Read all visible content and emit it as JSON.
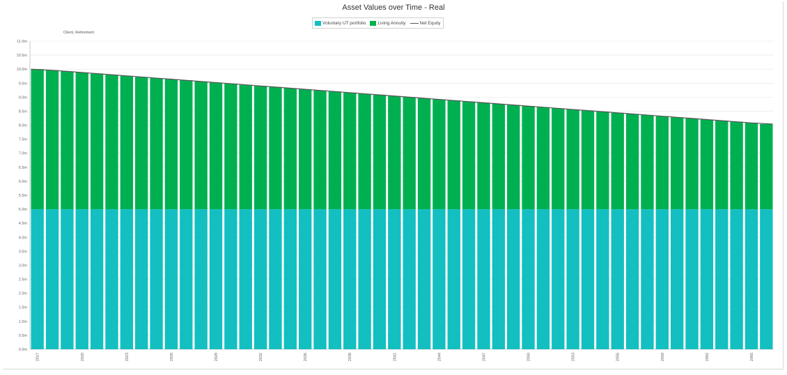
{
  "colors": {
    "voluntary_ut": "#13bfc1",
    "living_annuity": "#00b050",
    "net_equity": "#555555",
    "grid": "#e4e4e4",
    "axis": "#c8c8c8"
  },
  "chart_data": {
    "type": "bar",
    "stacked": true,
    "title": "Asset Values over Time - Real",
    "subtitle": "Client, Retirement",
    "legend_position": "top-center",
    "grid": true,
    "ylim": [
      0,
      11
    ],
    "y_ticks": [
      0,
      0.5,
      1,
      1.5,
      2,
      2.5,
      3,
      3.5,
      4,
      4.5,
      5,
      5.5,
      6,
      6.5,
      7,
      7.5,
      8,
      8.5,
      9,
      9.5,
      10,
      10.5,
      11
    ],
    "y_tick_labels": [
      "0.0m",
      "0.5m",
      "1.0m",
      "1.5m",
      "2.0m",
      "2.5m",
      "3.0m",
      "3.5m",
      "4.0m",
      "4.5m",
      "5.0m",
      "5.5m",
      "6.0m",
      "6.5m",
      "7.0m",
      "7.5m",
      "8.0m",
      "8.5m",
      "9.0m",
      "9.5m",
      "10.0m",
      "10.5m",
      "11.0m"
    ],
    "x_tick_labels": [
      "2017",
      "2020",
      "2023",
      "2026",
      "2029",
      "2032",
      "2035",
      "2038",
      "2041",
      "2044",
      "2047",
      "2050",
      "2053",
      "2056",
      "2059",
      "2062",
      "2065"
    ],
    "x_tick_every": 3,
    "num_bars": 50,
    "series": [
      {
        "name": "Voluntary UT portfolio",
        "kind": "bar",
        "values": [
          5.0,
          5.0,
          5.0,
          5.0,
          5.0,
          5.0,
          5.0,
          5.0,
          5.0,
          5.0,
          5.0,
          5.0,
          5.0,
          5.0,
          5.0,
          5.0,
          5.0,
          5.0,
          5.0,
          5.0,
          5.0,
          5.0,
          5.0,
          5.0,
          5.0,
          5.0,
          5.0,
          5.0,
          5.0,
          5.0,
          5.0,
          5.0,
          5.0,
          5.0,
          5.0,
          5.0,
          5.0,
          5.0,
          5.0,
          5.0,
          5.0,
          5.0,
          5.0,
          5.0,
          5.0,
          5.0,
          5.0,
          5.0,
          5.0,
          5.0
        ]
      },
      {
        "name": "Living Annuity",
        "kind": "bar",
        "values": [
          5.0,
          4.96,
          4.92,
          4.88,
          4.84,
          4.8,
          4.76,
          4.72,
          4.68,
          4.64,
          4.6,
          4.56,
          4.52,
          4.48,
          4.44,
          4.4,
          4.36,
          4.32,
          4.28,
          4.24,
          4.2,
          4.16,
          4.12,
          4.08,
          4.04,
          4.0,
          3.96,
          3.92,
          3.88,
          3.84,
          3.8,
          3.76,
          3.72,
          3.68,
          3.64,
          3.6,
          3.56,
          3.52,
          3.48,
          3.44,
          3.4,
          3.36,
          3.32,
          3.28,
          3.24,
          3.2,
          3.16,
          3.12,
          3.08,
          3.04
        ]
      },
      {
        "name": "Net Equity",
        "kind": "line",
        "values": [
          10.0,
          9.96,
          9.92,
          9.88,
          9.84,
          9.8,
          9.76,
          9.72,
          9.68,
          9.64,
          9.6,
          9.56,
          9.52,
          9.48,
          9.44,
          9.4,
          9.36,
          9.32,
          9.28,
          9.24,
          9.2,
          9.16,
          9.12,
          9.08,
          9.04,
          9.0,
          8.96,
          8.92,
          8.88,
          8.84,
          8.8,
          8.76,
          8.72,
          8.68,
          8.64,
          8.6,
          8.56,
          8.52,
          8.48,
          8.44,
          8.4,
          8.36,
          8.32,
          8.28,
          8.24,
          8.2,
          8.16,
          8.12,
          8.08,
          8.04
        ]
      }
    ]
  }
}
